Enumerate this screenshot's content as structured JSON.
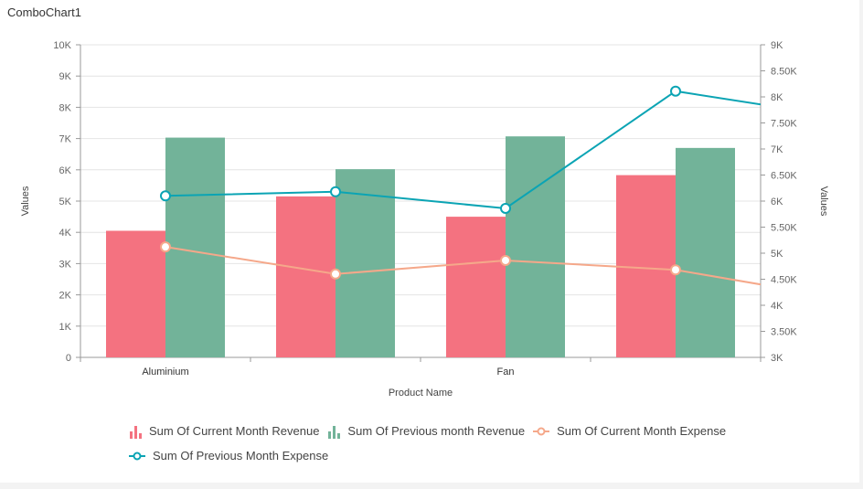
{
  "window": {
    "title": "ComboChart1"
  },
  "chart_data": {
    "type": "combo",
    "categories": [
      "Aluminium",
      "",
      "Fan",
      ""
    ],
    "xlabel": "Product Name",
    "ylabel": "Values",
    "y2label": "Values",
    "ylim": [
      0,
      10000
    ],
    "y2lim": [
      3000,
      9000
    ],
    "y_ticks": [
      "0",
      "1K",
      "2K",
      "3K",
      "4K",
      "5K",
      "6K",
      "7K",
      "8K",
      "9K",
      "10K"
    ],
    "y2_ticks": [
      "3K",
      "3.50K",
      "4K",
      "4.50K",
      "5K",
      "5.50K",
      "6K",
      "6.50K",
      "7K",
      "7.50K",
      "8K",
      "8.50K",
      "9K"
    ],
    "grid": true,
    "legend_position": "bottom",
    "series": [
      {
        "name": "Sum Of Current Month Revenue",
        "kind": "bar",
        "axis": "left",
        "color": "#f47280",
        "values": [
          4050,
          5150,
          4500,
          5830
        ]
      },
      {
        "name": "Sum Of Previous month Revenue",
        "kind": "bar",
        "axis": "left",
        "color": "#72b399",
        "values": [
          7030,
          6020,
          7070,
          6700
        ]
      },
      {
        "name": "Sum Of Current Month Expense",
        "kind": "line",
        "axis": "right",
        "color": "#f5a88a",
        "values": [
          5120,
          4600,
          4860,
          4680
        ],
        "trailing": 4120
      },
      {
        "name": "Sum Of Previous Month Expense",
        "kind": "line",
        "axis": "right",
        "color": "#0ba4b4",
        "values": [
          6100,
          6180,
          5860,
          8110
        ],
        "trailing": 7600
      }
    ]
  }
}
